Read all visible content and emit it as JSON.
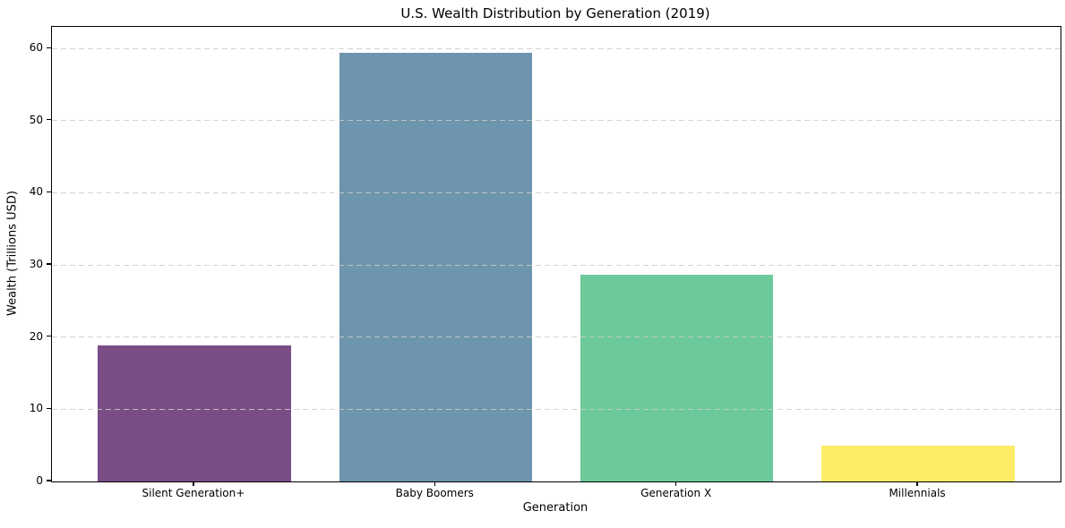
{
  "chart_data": {
    "type": "bar",
    "title": "U.S. Wealth Distribution by Generation (2019)",
    "xlabel": "Generation",
    "ylabel": "Wealth (Trillions USD)",
    "categories": [
      "Silent Generation+",
      "Baby Boomers",
      "Generation X",
      "Millennials"
    ],
    "values": [
      18.8,
      59.4,
      28.6,
      5.0
    ],
    "bar_colors": [
      "#7b4d87",
      "#6d95ad",
      "#6cc99a",
      "#fdeb66"
    ],
    "ylim": [
      0,
      63
    ],
    "yticks": [
      0,
      10,
      20,
      30,
      40,
      50,
      60
    ],
    "bar_width_fraction": 0.8,
    "x_margin": 0.59,
    "grid": "horizontal-dashed-over-bars",
    "legend": "none",
    "colors": {
      "background": "#ffffff",
      "spine": "#000000",
      "gridline": "#d3d3d3",
      "text": "#000000"
    }
  }
}
